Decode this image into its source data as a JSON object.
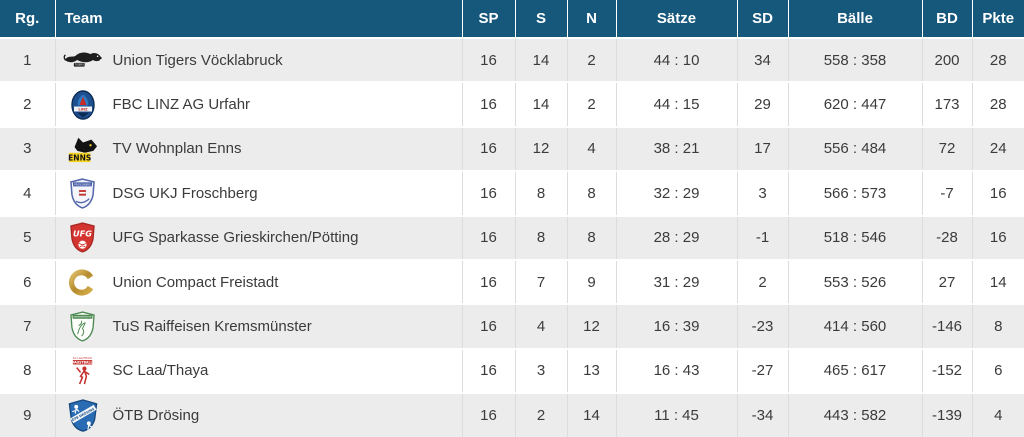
{
  "colors": {
    "header_bg": "#16587c",
    "header_text": "#ffffff",
    "row_alt_bg": "#ececec",
    "row_bg": "#ffffff",
    "body_text": "#3b3b3b"
  },
  "table": {
    "columns": [
      {
        "key": "rank",
        "label": "Rg."
      },
      {
        "key": "team",
        "label": "Team"
      },
      {
        "key": "sp",
        "label": "SP"
      },
      {
        "key": "s",
        "label": "S"
      },
      {
        "key": "n",
        "label": "N"
      },
      {
        "key": "saetze",
        "label": "Sätze"
      },
      {
        "key": "sd",
        "label": "SD"
      },
      {
        "key": "baelle",
        "label": "Bälle"
      },
      {
        "key": "bd",
        "label": "BD"
      },
      {
        "key": "pkte",
        "label": "Pkte"
      }
    ],
    "rows": [
      {
        "rank": "1",
        "team": "Union Tigers Vöcklabruck",
        "logo": "tigers-voecklabruck-logo",
        "sp": "16",
        "s": "14",
        "n": "2",
        "saetze": "44 : 10",
        "sd": "34",
        "baelle": "558 : 358",
        "bd": "200",
        "pkte": "28"
      },
      {
        "rank": "2",
        "team": "FBC LINZ AG Urfahr",
        "logo": "fbc-linz-urfahr-logo",
        "sp": "16",
        "s": "14",
        "n": "2",
        "saetze": "44 : 15",
        "sd": "29",
        "baelle": "620 : 447",
        "bd": "173",
        "pkte": "28"
      },
      {
        "rank": "3",
        "team": "TV Wohnplan Enns",
        "logo": "tv-enns-panther-logo",
        "sp": "16",
        "s": "12",
        "n": "4",
        "saetze": "38 : 21",
        "sd": "17",
        "baelle": "556 : 484",
        "bd": "72",
        "pkte": "24"
      },
      {
        "rank": "4",
        "team": "DSG UKJ Froschberg",
        "logo": "dsg-froschberg-logo",
        "sp": "16",
        "s": "8",
        "n": "8",
        "saetze": "32 : 29",
        "sd": "3",
        "baelle": "566 : 573",
        "bd": "-7",
        "pkte": "16"
      },
      {
        "rank": "5",
        "team": "UFG Sparkasse Grieskirchen/Pötting",
        "logo": "ufg-grieskirchen-logo",
        "sp": "16",
        "s": "8",
        "n": "8",
        "saetze": "28 : 29",
        "sd": "-1",
        "baelle": "518 : 546",
        "bd": "-28",
        "pkte": "16"
      },
      {
        "rank": "6",
        "team": "Union Compact Freistadt",
        "logo": "compact-freistadt-logo",
        "sp": "16",
        "s": "7",
        "n": "9",
        "saetze": "31 : 29",
        "sd": "2",
        "baelle": "553 : 526",
        "bd": "27",
        "pkte": "14"
      },
      {
        "rank": "7",
        "team": "TuS Raiffeisen Kremsmünster",
        "logo": "tus-kremsmuenster-logo",
        "sp": "16",
        "s": "4",
        "n": "12",
        "saetze": "16 : 39",
        "sd": "-23",
        "baelle": "414 : 560",
        "bd": "-146",
        "pkte": "8"
      },
      {
        "rank": "8",
        "team": "SC Laa/Thaya",
        "logo": "sc-laa-thaya-logo",
        "sp": "16",
        "s": "3",
        "n": "13",
        "saetze": "16 : 43",
        "sd": "-27",
        "baelle": "465 : 617",
        "bd": "-152",
        "pkte": "6"
      },
      {
        "rank": "9",
        "team": "ÖTB Drösing",
        "logo": "oetb-droesing-logo",
        "sp": "16",
        "s": "2",
        "n": "14",
        "saetze": "11 : 45",
        "sd": "-34",
        "baelle": "443 : 582",
        "bd": "-139",
        "pkte": "4"
      }
    ]
  }
}
